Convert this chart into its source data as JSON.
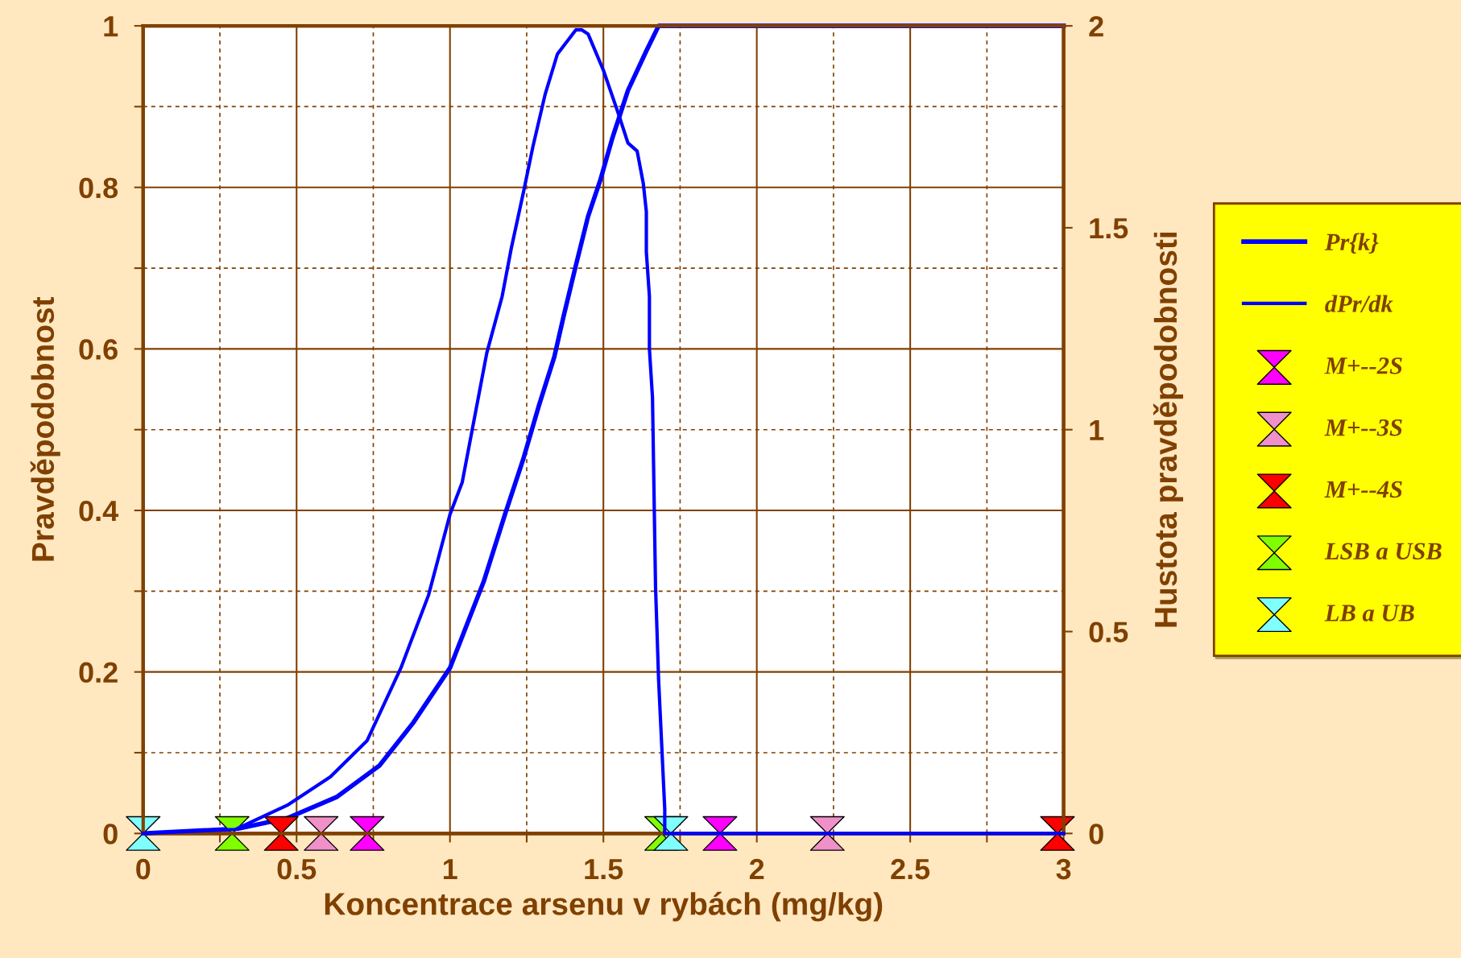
{
  "chart_data": {
    "type": "line",
    "xlabel": "Koncentrace arsenu v rybách (mg/kg)",
    "ylabel": "Pravděpodobnost",
    "y2label": "Hustota pravděpodobnosti",
    "xlim": [
      0,
      3
    ],
    "xticks": [
      0,
      {
        "value": 0.25,
        "label": null
      },
      0.5,
      {
        "value": 0.75,
        "label": null
      },
      1,
      {
        "value": 1.25,
        "label": null
      },
      1.5,
      {
        "value": 1.75,
        "label": null
      },
      2,
      {
        "value": 2.25,
        "label": null
      },
      2.5,
      {
        "value": 2.75,
        "label": null
      },
      3
    ],
    "ylim": [
      0,
      1
    ],
    "yticks": [
      0,
      {
        "value": 0.1,
        "label": null
      },
      0.2,
      {
        "value": 0.3,
        "label": null
      },
      0.4,
      {
        "value": 0.5,
        "label": null
      },
      0.6,
      {
        "value": 0.7,
        "label": null
      },
      0.8,
      {
        "value": 0.9,
        "label": null
      },
      1
    ],
    "y2lim": [
      0,
      2
    ],
    "y2ticks": [
      0,
      0.5,
      1,
      1.5,
      2
    ],
    "grid": true,
    "legend": "right",
    "line_style": "solid",
    "series": [
      {
        "name": "Pr{k}",
        "color": "#0000ff",
        "x": [
          0,
          0.31,
          0.47,
          0.63,
          0.77,
          0.88,
          1.0,
          1.11,
          1.18,
          1.24,
          1.29,
          1.34,
          1.37,
          1.41,
          1.45,
          1.49,
          1.53,
          1.58,
          1.64,
          1.68,
          1.72,
          3
        ],
        "values": [
          0,
          0.006,
          0.019,
          0.045,
          0.084,
          0.137,
          0.205,
          0.312,
          0.396,
          0.465,
          0.53,
          0.59,
          0.64,
          0.703,
          0.764,
          0.809,
          0.862,
          0.92,
          0.969,
          1.0,
          1.0,
          1.0
        ]
      },
      {
        "name": "dPr/dk",
        "axis": "y2",
        "color": "#0000ff",
        "x": [
          0,
          0.3,
          0.47,
          0.61,
          0.73,
          0.84,
          0.93,
          1.0,
          1.04,
          1.09,
          1.12,
          1.17,
          1.2,
          1.24,
          1.27,
          1.31,
          1.35,
          1.39,
          1.41,
          1.43,
          1.45,
          1.5,
          1.55,
          1.58,
          1.61,
          1.63,
          1.64,
          1.64,
          1.65,
          1.65,
          1.66,
          1.67,
          1.68,
          1.7,
          1.7,
          3
        ],
        "values": [
          0,
          0.01,
          0.07,
          0.14,
          0.23,
          0.41,
          0.59,
          0.79,
          0.87,
          1.07,
          1.19,
          1.33,
          1.45,
          1.59,
          1.7,
          1.83,
          1.93,
          1.97,
          1.99,
          1.99,
          1.98,
          1.89,
          1.78,
          1.71,
          1.69,
          1.61,
          1.54,
          1.44,
          1.33,
          1.2,
          1.08,
          0.61,
          0.38,
          0.06,
          0,
          0
        ]
      },
      {
        "name": "M+--2S",
        "type": "scatter",
        "color": "#ff00ff",
        "x": [
          0.73,
          1.88
        ],
        "values": [
          0,
          0
        ]
      },
      {
        "name": "M+--3S",
        "type": "scatter",
        "color": "#f090c8",
        "x": [
          0.58,
          2.23
        ],
        "values": [
          0,
          0
        ]
      },
      {
        "name": "M+--4S",
        "type": "scatter",
        "color": "#ff0000",
        "x": [
          0.45,
          2.98
        ],
        "values": [
          0,
          0
        ]
      },
      {
        "name": "LSB a USB",
        "type": "scatter",
        "color": "#80ff00",
        "x": [
          0.29,
          1.69
        ],
        "values": [
          0,
          0
        ]
      },
      {
        "name": "LB a UB",
        "type": "scatter",
        "color": "#80ffff",
        "x": [
          0,
          1.72
        ],
        "values": [
          0,
          0
        ]
      }
    ]
  }
}
